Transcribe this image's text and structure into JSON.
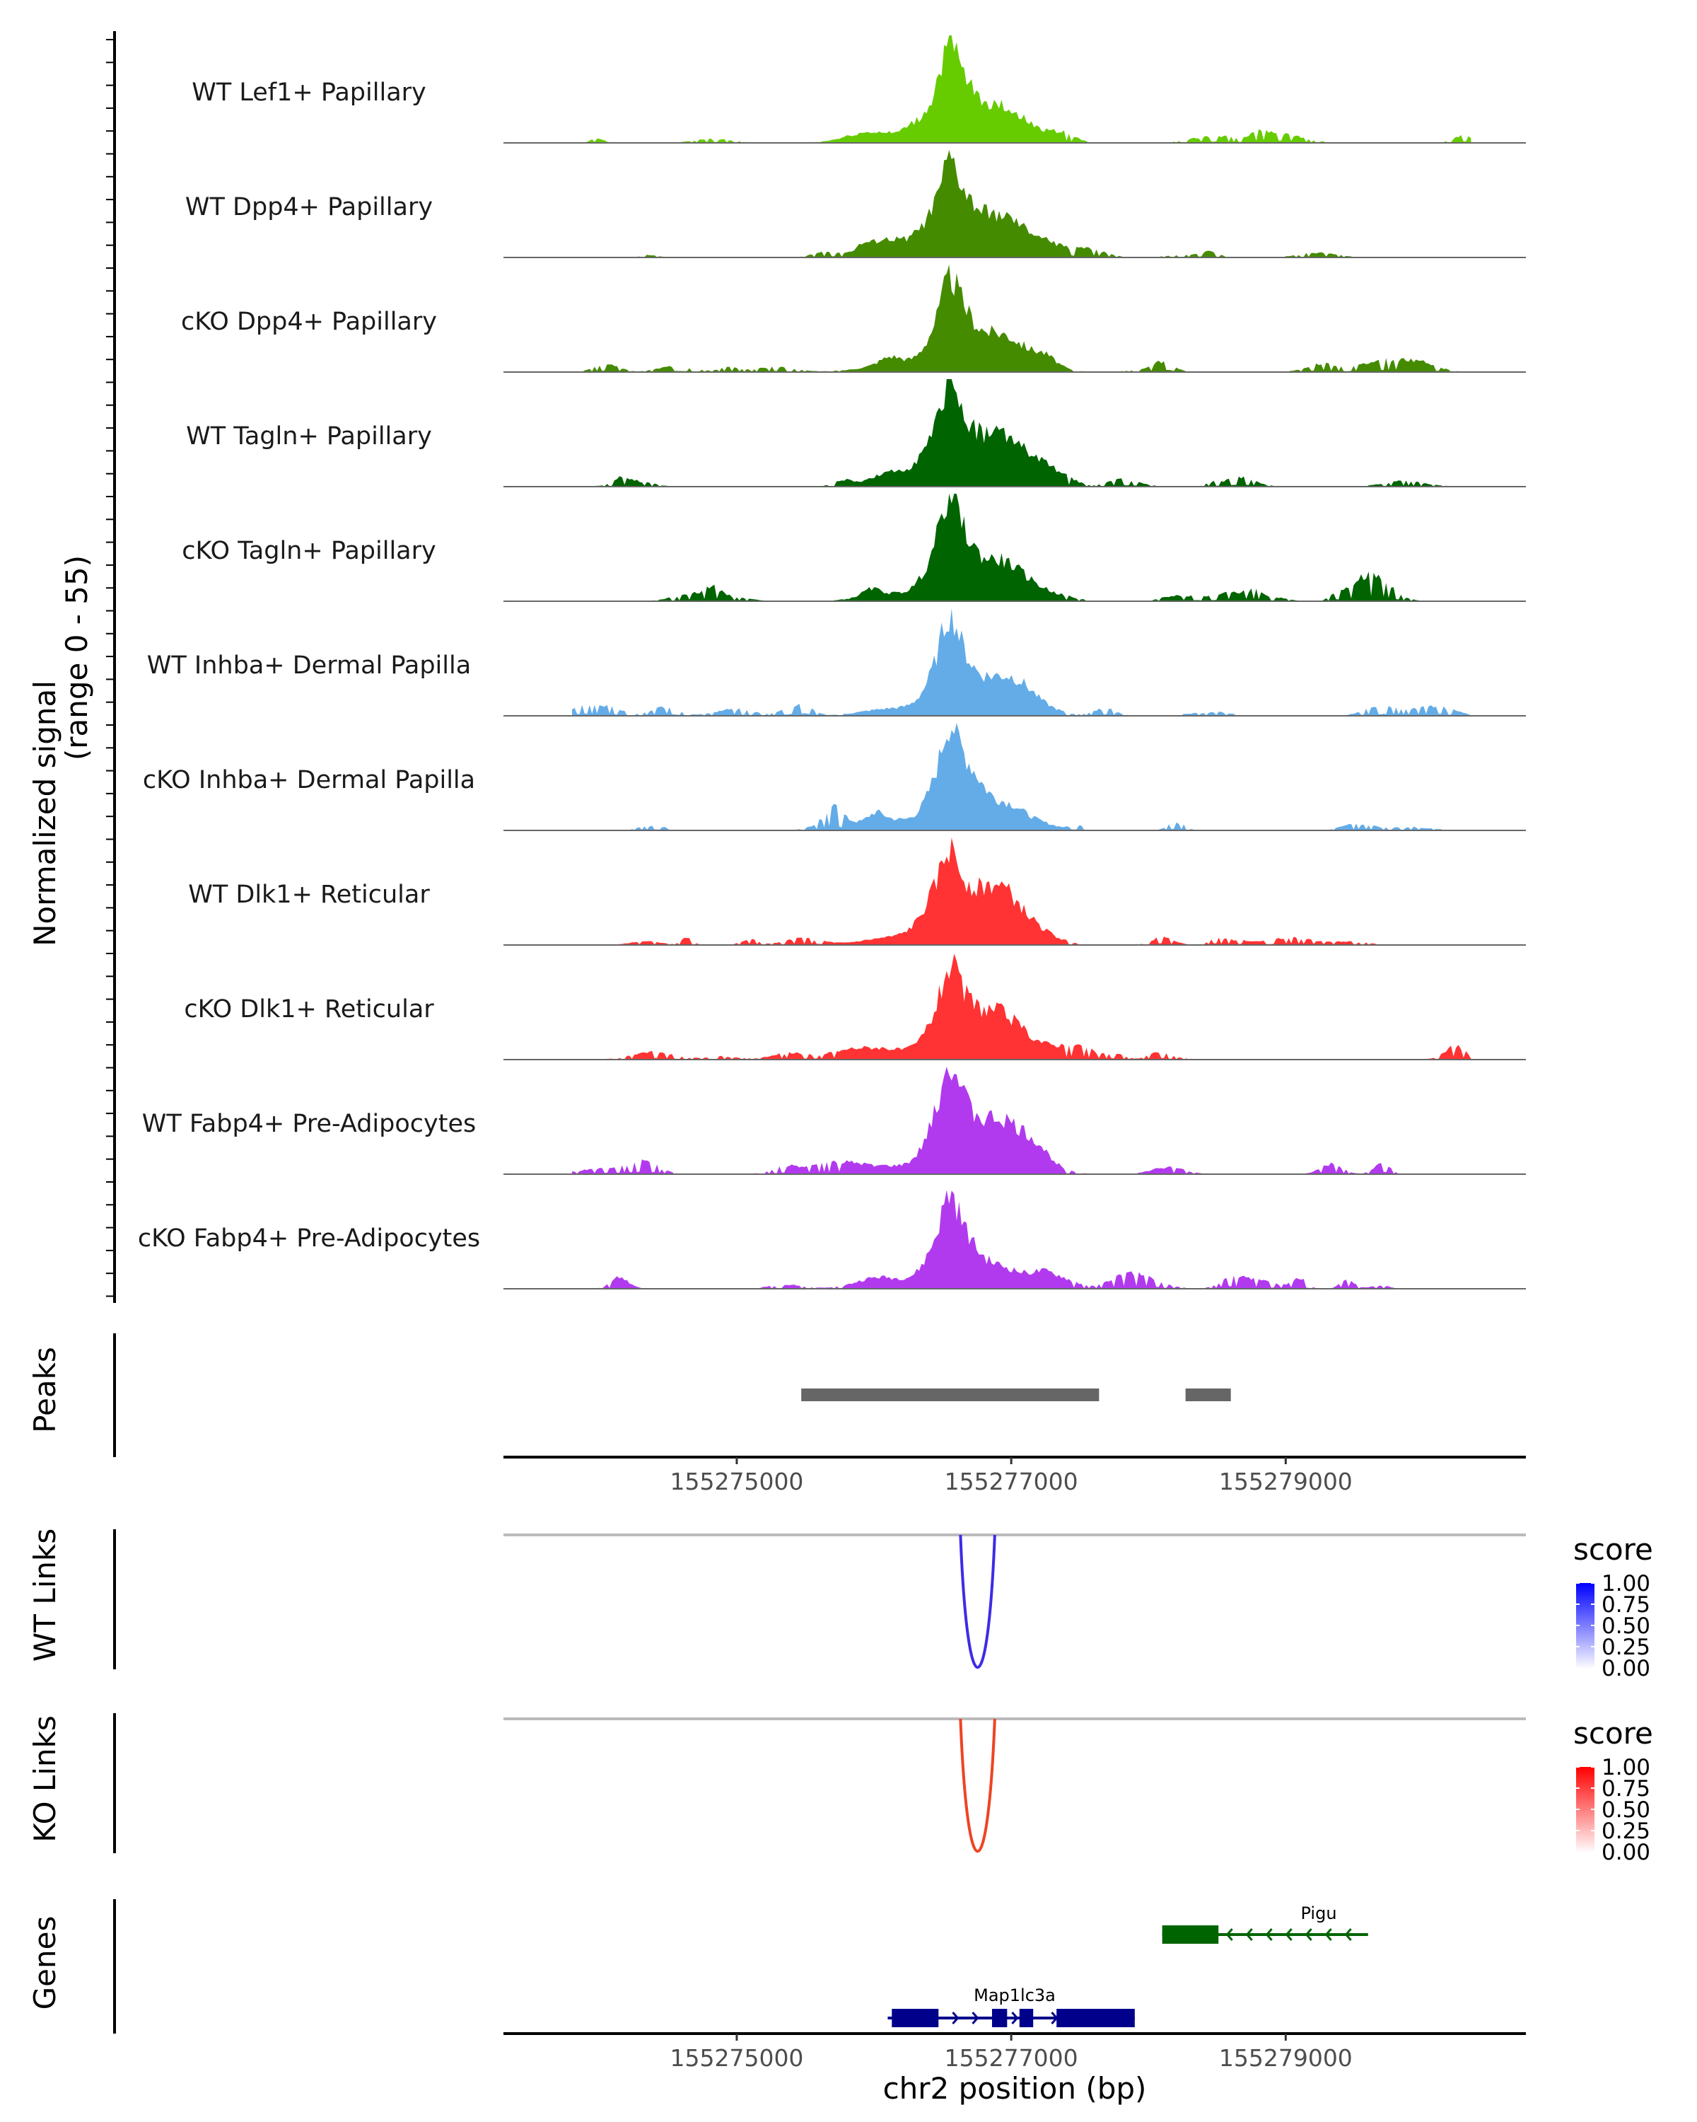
{
  "chart_data": {
    "type": "area",
    "title": "",
    "chromosome": "chr2",
    "xlabel": "chr2 position (bp)",
    "xlim": [
      155273300,
      155280750
    ],
    "x_ticks": [
      155275000,
      155277000,
      155279000
    ],
    "x_tick_labels": [
      "155275000",
      "155277000",
      "155279000"
    ],
    "coverage": {
      "ylabel_line1": "Normalized signal",
      "ylabel_line2": "(range 0 - 55)",
      "ylim": [
        0,
        55
      ],
      "tracks": [
        {
          "name": "WT Lef1+ Papillary",
          "color": "#66CC00",
          "main": 48,
          "second": 17,
          "noise": 0.1,
          "seed": 1
        },
        {
          "name": "WT Dpp4+ Papillary",
          "color": "#458B00",
          "main": 48,
          "second": 17,
          "noise": 0.12,
          "seed": 2
        },
        {
          "name": "cKO Dpp4+ Papillary",
          "color": "#458B00",
          "main": 46,
          "second": 18,
          "noise": 0.15,
          "seed": 3
        },
        {
          "name": "WT Tagln+ Papillary",
          "color": "#006400",
          "main": 54,
          "second": 25,
          "noise": 0.12,
          "seed": 4
        },
        {
          "name": "cKO Tagln+ Papillary",
          "color": "#006400",
          "main": 55,
          "second": 19,
          "noise": 0.13,
          "seed": 5
        },
        {
          "name": "WT Inhba+ Dermal Papilla",
          "color": "#63ACE8",
          "main": 47,
          "second": 18,
          "noise": 0.15,
          "seed": 6
        },
        {
          "name": "cKO Inhba+ Dermal Papilla",
          "color": "#63ACE8",
          "main": 48,
          "second": 12,
          "noise": 0.2,
          "seed": 7
        },
        {
          "name": "WT Dlk1+ Reticular",
          "color": "#FF3333",
          "main": 45,
          "second": 22,
          "noise": 0.12,
          "seed": 8
        },
        {
          "name": "cKO Dlk1+ Reticular",
          "color": "#FF3333",
          "main": 46,
          "second": 20,
          "noise": 0.13,
          "seed": 9
        },
        {
          "name": "WT Fabp4+ Pre-Adipocytes",
          "color": "#B23AEE",
          "main": 55,
          "second": 23,
          "noise": 0.18,
          "seed": 10
        },
        {
          "name": "cKO Fabp4+ Pre-Adipocytes",
          "color": "#B23AEE",
          "main": 48,
          "second": 10,
          "noise": 0.18,
          "seed": 11
        }
      ]
    },
    "peaks": {
      "label": "Peaks",
      "color": "#666666",
      "regions": [
        [
          155275470,
          155277640
        ],
        [
          155278270,
          155278600
        ]
      ]
    },
    "wt_links": {
      "label": "WT Links",
      "color": "#3E2BE6",
      "links": [
        {
          "start": 155276630,
          "end": 155276880,
          "score": 0.75
        }
      ],
      "legend": {
        "title": "score",
        "low": "#FFFFFF",
        "high": "#0000FF",
        "ticks": [
          "1.00",
          "0.75",
          "0.50",
          "0.25",
          "0.00"
        ]
      }
    },
    "ko_links": {
      "label": "KO Links",
      "color": "#EE4422",
      "links": [
        {
          "start": 155276630,
          "end": 155276880,
          "score": 0.75
        }
      ],
      "legend": {
        "title": "score",
        "low": "#FFFFFF",
        "high": "#FF0000",
        "ticks": [
          "1.00",
          "0.75",
          "0.50",
          "0.25",
          "0.00"
        ]
      }
    },
    "genes": {
      "label": "Genes",
      "items": [
        {
          "name": "Pigu",
          "strand": "-",
          "color": "#006400",
          "start": 155278100,
          "end": 155279600,
          "exons": [
            [
              155278100,
              155278510
            ]
          ]
        },
        {
          "name": "Map1lc3a",
          "strand": "+",
          "color": "#00008B",
          "start": 155276100,
          "end": 155277900,
          "exons": [
            [
              155276130,
              155276470
            ],
            [
              155276860,
              155276970
            ],
            [
              155277060,
              155277160
            ],
            [
              155277330,
              155277900
            ]
          ]
        }
      ]
    }
  }
}
